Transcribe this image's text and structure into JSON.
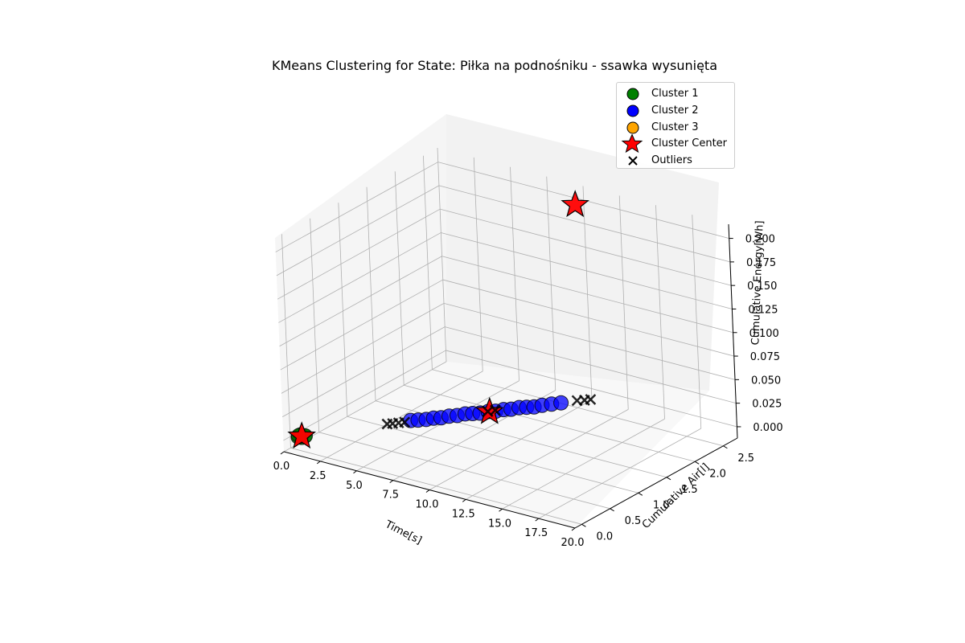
{
  "chart_data": {
    "type": "scatter",
    "title": "KMeans Clustering for State: Piłka na podnośniku - ssawka wysunięta",
    "xlabel": "Time[s]",
    "ylabel": "Cumulative Air[l]",
    "zlabel": "Cumulative Energy[Wh]",
    "xlim": [
      0,
      20
    ],
    "ylim": [
      0,
      2.5
    ],
    "zlim": [
      0,
      0.2
    ],
    "x_ticks": [
      "0.0",
      "2.5",
      "5.0",
      "7.5",
      "10.0",
      "12.5",
      "15.0",
      "17.5",
      "20.0"
    ],
    "y_ticks": [
      "0.0",
      "0.5",
      "1.0",
      "1.5",
      "2.0",
      "2.5"
    ],
    "z_ticks": [
      "0.000",
      "0.025",
      "0.050",
      "0.075",
      "0.100",
      "0.125",
      "0.150",
      "0.175",
      "0.200"
    ],
    "grid": true,
    "legend_position": "top-right",
    "series": [
      {
        "name": "Cluster 1",
        "color": "#008000",
        "marker": "circle",
        "points": [
          [
            0.4,
            0.04,
            0.0
          ],
          [
            0.5,
            0.05,
            0.001
          ],
          [
            0.6,
            0.05,
            0.0
          ],
          [
            0.5,
            0.06,
            0.002
          ],
          [
            0.7,
            0.07,
            0.001
          ],
          [
            0.6,
            0.04,
            0.002
          ],
          [
            0.8,
            0.06,
            0.002
          ],
          [
            0.4,
            0.05,
            0.001
          ]
        ]
      },
      {
        "name": "Cluster 2",
        "color": "#0000ff",
        "marker": "circle",
        "points": [
          [
            6.2,
            0.55,
            0.024
          ],
          [
            6.6,
            0.58,
            0.025
          ],
          [
            7.0,
            0.62,
            0.026
          ],
          [
            7.4,
            0.65,
            0.028
          ],
          [
            7.8,
            0.68,
            0.029
          ],
          [
            8.2,
            0.72,
            0.031
          ],
          [
            8.6,
            0.76,
            0.032
          ],
          [
            9.0,
            0.8,
            0.034
          ],
          [
            9.4,
            0.83,
            0.035
          ],
          [
            9.8,
            0.86,
            0.036
          ],
          [
            10.2,
            0.9,
            0.038
          ],
          [
            10.6,
            0.93,
            0.039
          ],
          [
            11.0,
            0.97,
            0.041
          ],
          [
            11.4,
            1.0,
            0.042
          ],
          [
            11.8,
            1.04,
            0.044
          ],
          [
            12.2,
            1.07,
            0.045
          ],
          [
            12.6,
            1.1,
            0.046
          ],
          [
            13.0,
            1.14,
            0.048
          ],
          [
            13.5,
            1.18,
            0.05
          ],
          [
            14.0,
            1.22,
            0.052
          ]
        ]
      },
      {
        "name": "Cluster 3",
        "color": "#ffa500",
        "marker": "circle",
        "points": []
      },
      {
        "name": "Cluster Center",
        "color": "#ff0000",
        "marker": "star",
        "points": [
          [
            0.6,
            0.05,
            0.001
          ],
          [
            10.3,
            0.9,
            0.038
          ],
          [
            10.0,
            2.6,
            0.2
          ]
        ]
      },
      {
        "name": "Outliers",
        "color": "#000000",
        "marker": "x",
        "points": [
          [
            5.0,
            0.44,
            0.019
          ],
          [
            5.3,
            0.46,
            0.02
          ],
          [
            5.6,
            0.49,
            0.021
          ],
          [
            5.9,
            0.52,
            0.022
          ],
          [
            10.1,
            0.92,
            0.037
          ],
          [
            10.5,
            0.95,
            0.039
          ],
          [
            14.8,
            1.3,
            0.055
          ],
          [
            15.2,
            1.33,
            0.056
          ],
          [
            15.5,
            1.36,
            0.057
          ]
        ]
      }
    ]
  },
  "legend": {
    "items": [
      "Cluster 1",
      "Cluster 2",
      "Cluster 3",
      "Cluster Center",
      "Outliers"
    ]
  }
}
